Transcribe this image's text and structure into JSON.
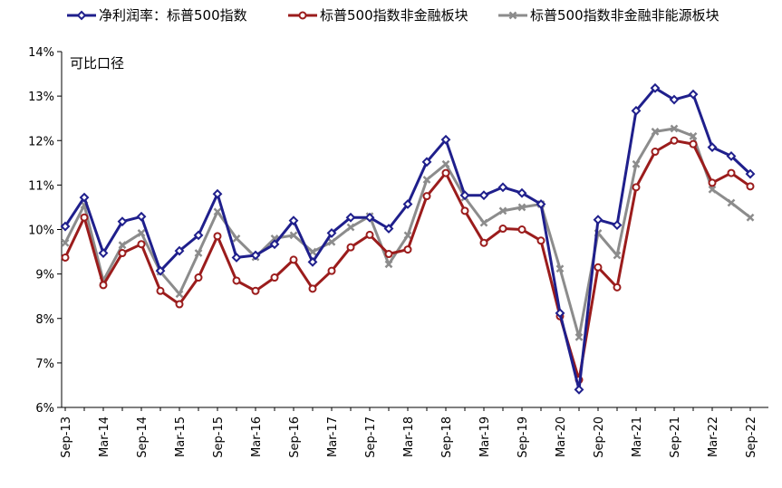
{
  "chart_data": {
    "type": "line",
    "title": "",
    "annotation": "可比口径",
    "xlabel": "",
    "ylabel": "",
    "ylim": [
      6,
      14
    ],
    "y_ticks": [
      "6%",
      "7%",
      "8%",
      "9%",
      "10%",
      "11%",
      "12%",
      "13%",
      "14%"
    ],
    "y_tick_values": [
      6,
      7,
      8,
      9,
      10,
      11,
      12,
      13,
      14
    ],
    "x_tick_labels": [
      "Sep-13",
      "Mar-14",
      "Sep-14",
      "Mar-15",
      "Sep-15",
      "Mar-16",
      "Sep-16",
      "Mar-17",
      "Sep-17",
      "Mar-18",
      "Sep-18",
      "Mar-19",
      "Sep-19",
      "Mar-20",
      "Sep-20",
      "Mar-21",
      "Sep-21",
      "Mar-22",
      "Sep-22"
    ],
    "categories": [
      "Sep-13",
      "Dec-13",
      "Mar-14",
      "Jun-14",
      "Sep-14",
      "Dec-14",
      "Mar-15",
      "Jun-15",
      "Sep-15",
      "Dec-15",
      "Mar-16",
      "Jun-16",
      "Sep-16",
      "Dec-16",
      "Mar-17",
      "Jun-17",
      "Sep-17",
      "Dec-17",
      "Mar-18",
      "Jun-18",
      "Sep-18",
      "Dec-18",
      "Mar-19",
      "Jun-19",
      "Sep-19",
      "Dec-19",
      "Mar-20",
      "Jun-20",
      "Sep-20",
      "Dec-20",
      "Mar-21",
      "Jun-21",
      "Sep-21",
      "Dec-21",
      "Mar-22",
      "Jun-22",
      "Sep-22"
    ],
    "series": [
      {
        "name": "净利润率：标普500指数",
        "color": "#1f1f8c",
        "marker": "diamond",
        "values": [
          10.07,
          10.72,
          9.47,
          10.18,
          10.29,
          9.07,
          9.52,
          9.87,
          10.8,
          9.37,
          9.42,
          9.67,
          10.2,
          9.27,
          9.92,
          10.27,
          10.27,
          10.02,
          10.57,
          11.52,
          12.02,
          10.77,
          10.77,
          10.95,
          10.82,
          10.57,
          8.12,
          6.4,
          10.22,
          10.1,
          12.67,
          13.18,
          12.92,
          13.04,
          11.85,
          11.65,
          11.25
        ]
      },
      {
        "name": "标普500指数非金融板块",
        "color": "#9b1c1c",
        "marker": "circle",
        "values": [
          9.37,
          10.27,
          8.75,
          9.47,
          9.67,
          8.62,
          8.32,
          8.92,
          9.85,
          8.85,
          8.62,
          8.92,
          9.32,
          8.67,
          9.07,
          9.6,
          9.88,
          9.45,
          9.55,
          10.75,
          11.27,
          10.42,
          9.7,
          10.02,
          10.0,
          9.75,
          8.05,
          6.62,
          9.15,
          8.7,
          10.95,
          11.75,
          12.0,
          11.92,
          11.05,
          11.27,
          10.97
        ]
      },
      {
        "name": "标普500指数非金融非能源板块",
        "color": "#8c8c8c",
        "marker": "x",
        "values": [
          9.7,
          10.55,
          8.85,
          9.65,
          9.92,
          9.05,
          8.55,
          9.47,
          10.4,
          9.8,
          9.38,
          9.8,
          9.87,
          9.5,
          9.72,
          10.05,
          10.3,
          9.22,
          9.87,
          11.12,
          11.47,
          10.72,
          10.15,
          10.42,
          10.5,
          10.57,
          9.12,
          7.58,
          9.92,
          9.42,
          11.47,
          12.2,
          12.27,
          12.1,
          10.9,
          10.6,
          10.27
        ]
      }
    ],
    "legend_position": "top"
  }
}
